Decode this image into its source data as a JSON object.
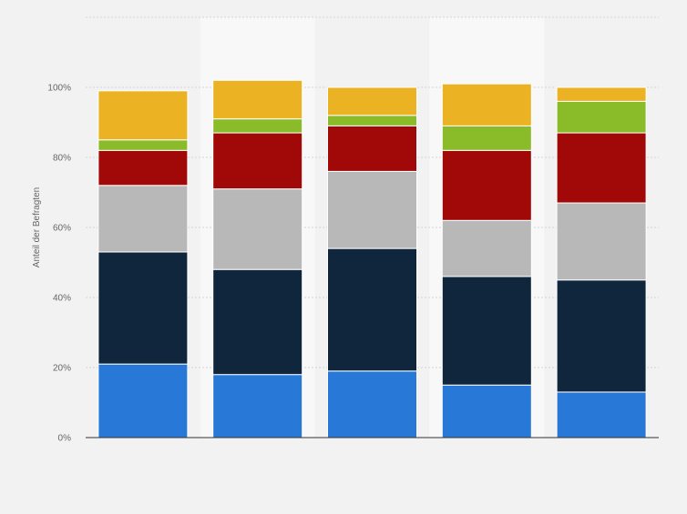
{
  "chart_data": {
    "type": "bar",
    "stacked": true,
    "title": "",
    "xlabel": "",
    "ylabel": "Anteil der Befragten",
    "ylim": [
      0,
      120
    ],
    "y_ticks": [
      0,
      20,
      40,
      60,
      80,
      100
    ],
    "y_tick_labels": [
      "0%",
      "20%",
      "40%",
      "60%",
      "80%",
      "100%"
    ],
    "grid": true,
    "legend": "none",
    "categories": [
      "",
      "",
      "",
      "",
      ""
    ],
    "series": [
      {
        "color": "#2878d8",
        "values": [
          21,
          18,
          19,
          15,
          13
        ]
      },
      {
        "color": "#0f263d",
        "values": [
          32,
          30,
          35,
          31,
          32
        ]
      },
      {
        "color": "#b8b8b8",
        "values": [
          19,
          23,
          22,
          16,
          22
        ]
      },
      {
        "color": "#a10808",
        "values": [
          10,
          16,
          13,
          20,
          20
        ]
      },
      {
        "color": "#8abb28",
        "values": [
          3,
          4,
          3,
          7,
          9
        ]
      },
      {
        "color": "#ebb223",
        "values": [
          14,
          11,
          8,
          12,
          4
        ]
      }
    ]
  }
}
